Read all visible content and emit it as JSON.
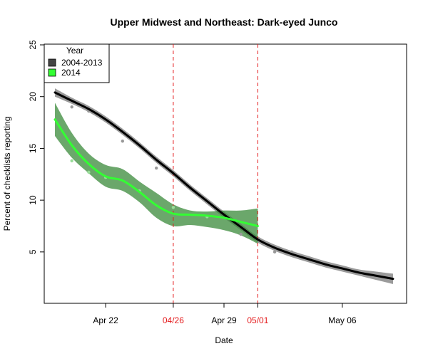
{
  "chart_data": {
    "type": "line",
    "title": "Upper Midwest and Northeast: Dark-eyed Junco",
    "xlabel": "Date",
    "ylabel": "Percent of checklists reporting",
    "x_tick_labels": [
      "Apr 22",
      "Apr 29",
      "May 06"
    ],
    "x_tick_values": [
      3,
      10,
      17
    ],
    "x_range": [
      0,
      20
    ],
    "ylim": [
      0,
      25
    ],
    "y_ticks": [
      5,
      10,
      15,
      20,
      25
    ],
    "vlines": [
      {
        "label": "04/26",
        "x": 7,
        "color": "#e41a1c"
      },
      {
        "label": "05/01",
        "x": 12,
        "color": "#e41a1c"
      }
    ],
    "legend": {
      "title": "Year",
      "position": "top-left"
    },
    "series": [
      {
        "name": "2004-2013",
        "color": "#000000",
        "band_color": "#8a8a8a",
        "x": [
          0,
          1,
          2,
          3,
          4,
          5,
          6,
          7,
          8,
          9,
          10,
          11,
          12,
          13,
          14,
          15,
          16,
          17,
          18,
          19,
          20
        ],
        "y": [
          20.4,
          19.6,
          18.8,
          17.8,
          16.6,
          15.3,
          13.9,
          12.6,
          11.2,
          9.9,
          8.6,
          7.4,
          6.2,
          5.4,
          4.8,
          4.3,
          3.8,
          3.4,
          3.0,
          2.7,
          2.4
        ],
        "lower": [
          20.0,
          19.3,
          18.5,
          17.5,
          16.3,
          15.0,
          13.6,
          12.3,
          10.9,
          9.6,
          8.3,
          7.1,
          5.9,
          5.1,
          4.5,
          4.0,
          3.5,
          3.1,
          2.7,
          2.3,
          1.9
        ],
        "upper": [
          20.8,
          19.9,
          19.1,
          18.1,
          16.9,
          15.6,
          14.2,
          12.9,
          11.5,
          10.2,
          8.9,
          7.7,
          6.5,
          5.7,
          5.1,
          4.6,
          4.1,
          3.7,
          3.3,
          3.1,
          2.9
        ],
        "points": [
          [
            1,
            19.0
          ],
          [
            2,
            18.6
          ],
          [
            4,
            15.7
          ],
          [
            6,
            13.1
          ],
          [
            8,
            11.2
          ],
          [
            11,
            6.7
          ],
          [
            13,
            5.0
          ],
          [
            14,
            5.0
          ],
          [
            15,
            4.4
          ],
          [
            17,
            3.4
          ]
        ]
      },
      {
        "name": "2014",
        "color": "#33ff33",
        "band_color": "#3a8a3a",
        "x": [
          0,
          1,
          2,
          3,
          4,
          5,
          6,
          7,
          8,
          9,
          10,
          11,
          12
        ],
        "y": [
          17.8,
          15.3,
          13.5,
          12.3,
          11.9,
          10.8,
          9.5,
          8.7,
          8.6,
          8.5,
          8.3,
          7.9,
          7.5
        ],
        "lower": [
          16.2,
          14.1,
          12.6,
          11.3,
          10.9,
          9.8,
          8.3,
          7.5,
          7.6,
          7.4,
          7.1,
          6.6,
          5.8
        ],
        "upper": [
          19.4,
          16.5,
          14.5,
          13.4,
          13.0,
          11.8,
          10.7,
          9.6,
          9.0,
          8.9,
          9.0,
          9.0,
          9.2
        ],
        "points": [
          [
            1,
            13.8
          ],
          [
            2,
            12.7
          ],
          [
            3,
            12.2
          ],
          [
            5,
            10.9
          ],
          [
            7,
            9.3
          ],
          [
            9,
            8.4
          ]
        ]
      }
    ]
  }
}
